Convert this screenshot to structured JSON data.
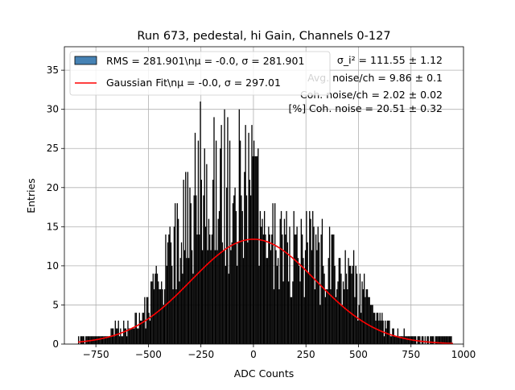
{
  "chart_data": {
    "type": "bar",
    "title": "Run 673, pedestal, hi Gain, Channels 0-127",
    "xlabel": "ADC Counts",
    "ylabel": "Entries",
    "xlim": [
      -900,
      1000
    ],
    "ylim": [
      0,
      38
    ],
    "x_ticks": [
      -750,
      -500,
      -250,
      0,
      250,
      500,
      750,
      1000
    ],
    "y_ticks": [
      0,
      5,
      10,
      15,
      20,
      25,
      30,
      35
    ],
    "grid": true,
    "legend_position": "top-left",
    "series": [
      {
        "name": "RMS = 281.901\\nμ = -0.0, σ = 281.901",
        "kind": "histogram",
        "color": "#4682b4",
        "bin_width": 5,
        "profile": [
          [
            -835,
            1
          ],
          [
            -750,
            1
          ],
          [
            -700,
            1
          ],
          [
            -650,
            2
          ],
          [
            -600,
            2
          ],
          [
            -550,
            3
          ],
          [
            -500,
            5
          ],
          [
            -450,
            7
          ],
          [
            -400,
            11
          ],
          [
            -350,
            14
          ],
          [
            -300,
            17
          ],
          [
            -250,
            21
          ],
          [
            -200,
            22
          ],
          [
            -150,
            20
          ],
          [
            -100,
            19
          ],
          [
            -50,
            21
          ],
          [
            0,
            18
          ],
          [
            50,
            14
          ],
          [
            100,
            13
          ],
          [
            150,
            11
          ],
          [
            200,
            11
          ],
          [
            250,
            12
          ],
          [
            300,
            11
          ],
          [
            350,
            10
          ],
          [
            400,
            9
          ],
          [
            450,
            8
          ],
          [
            500,
            7
          ],
          [
            550,
            5
          ],
          [
            600,
            3
          ],
          [
            650,
            2
          ],
          [
            700,
            1
          ],
          [
            750,
            1
          ],
          [
            800,
            0.5
          ],
          [
            850,
            1
          ],
          [
            900,
            1
          ],
          [
            950,
            0.5
          ]
        ]
      },
      {
        "name": "Gaussian Fit\\nμ = -0.0, σ = 297.01",
        "kind": "line",
        "color": "#ff0000",
        "mu": 0.0,
        "sigma": 297.01,
        "amplitude": 13.4,
        "x_range": [
          -835,
          950
        ]
      }
    ],
    "annotations": [
      "σ_i² = 111.55 ± 1.12",
      "Avg. noise/ch = 9.86 ± 0.1",
      "Coh. noise/ch = 2.02 ± 0.02",
      "[%] Coh. noise = 20.51 ± 0.32"
    ]
  }
}
